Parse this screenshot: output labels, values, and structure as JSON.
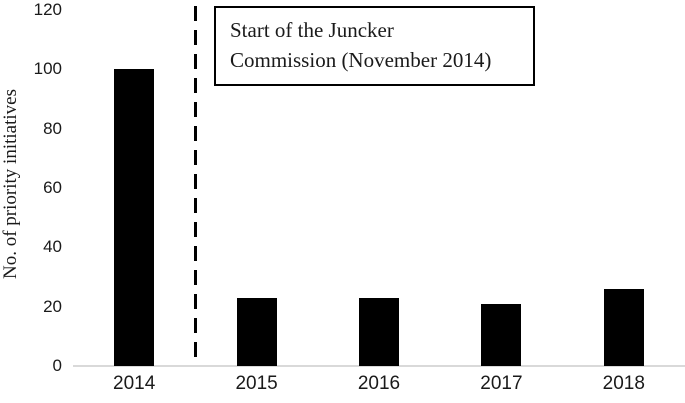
{
  "chart_data": {
    "type": "bar",
    "title": "",
    "categories": [
      "2014",
      "2015",
      "2016",
      "2017",
      "2018"
    ],
    "values": [
      100,
      23,
      23,
      21,
      26
    ],
    "xlabel": "",
    "ylabel": "No. of priority initiatives",
    "ylim": [
      0,
      120
    ],
    "yticks": [
      0,
      20,
      40,
      60,
      80,
      100,
      120
    ],
    "grid": false,
    "legend_position": "none",
    "bar_color": "#000000",
    "axis_line_color": "#d9d9d9",
    "annotation": {
      "text": "Start of the Juncker\nCommission (November 2014)",
      "marker": "dashed-vertical-line",
      "line_between": [
        "2014",
        "2015"
      ]
    }
  }
}
